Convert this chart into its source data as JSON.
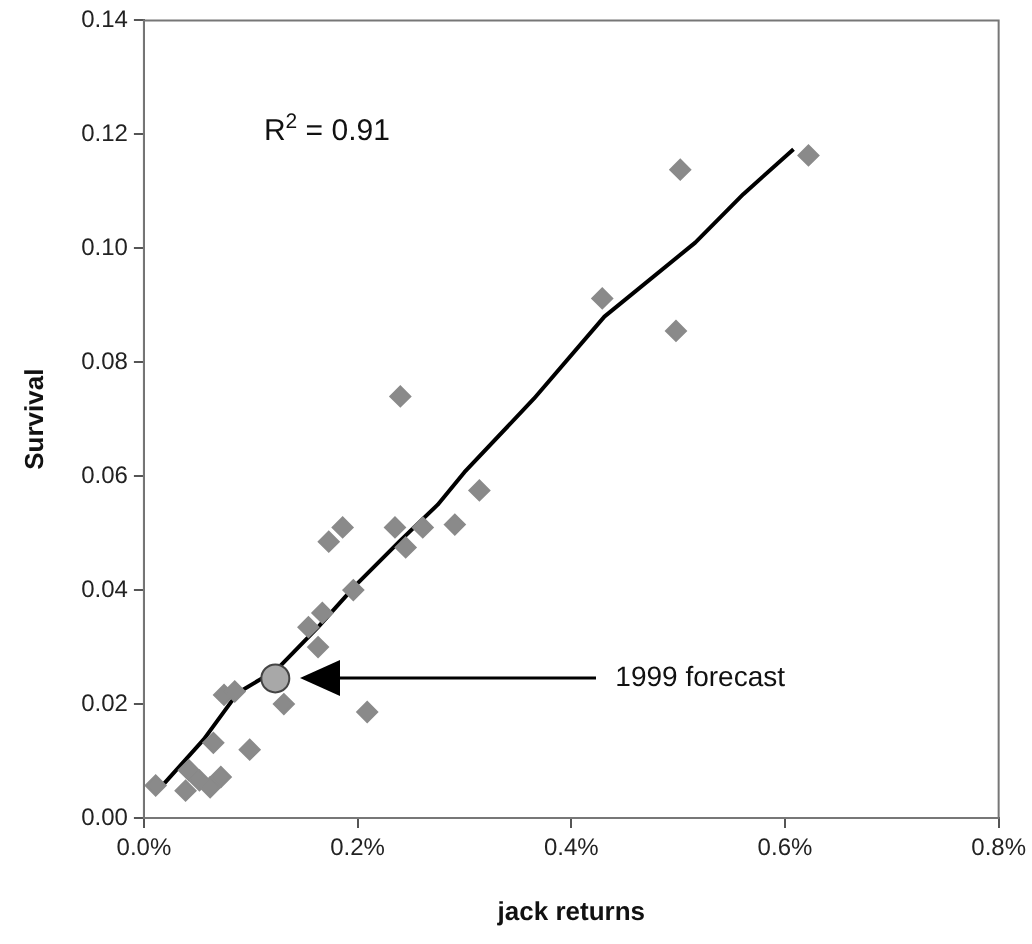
{
  "chart_data": {
    "type": "scatter",
    "xlabel": "jack returns",
    "ylabel": "Survival",
    "xlim": [
      0,
      0.8
    ],
    "ylim": [
      0,
      0.14
    ],
    "xticks": [
      {
        "value": 0,
        "label": "0.0%"
      },
      {
        "value": 0.2,
        "label": "0.2%"
      },
      {
        "value": 0.4,
        "label": "0.4%"
      },
      {
        "value": 0.6,
        "label": "0.6%"
      },
      {
        "value": 0.8,
        "label": "0.8%"
      }
    ],
    "yticks": [
      {
        "value": 0,
        "label": "0.00"
      },
      {
        "value": 0.02,
        "label": "0.02"
      },
      {
        "value": 0.04,
        "label": "0.04"
      },
      {
        "value": 0.06,
        "label": "0.06"
      },
      {
        "value": 0.08,
        "label": "0.08"
      },
      {
        "value": 0.1,
        "label": "0.10"
      },
      {
        "value": 0.12,
        "label": "0.12"
      },
      {
        "value": 0.14,
        "label": "0.14"
      }
    ],
    "grid": false,
    "legend": false,
    "series": [
      {
        "marker": "diamond",
        "color": "#8a8a8a",
        "x": [
          0.011,
          0.039,
          0.042,
          0.052,
          0.062,
          0.072,
          0.065,
          0.075,
          0.085,
          0.099,
          0.131,
          0.209,
          0.154,
          0.167,
          0.163,
          0.173,
          0.186,
          0.196,
          0.235,
          0.245,
          0.261,
          0.291,
          0.314,
          0.24,
          0.429,
          0.498,
          0.502,
          0.622
        ],
        "values": [
          0.0057,
          0.0048,
          0.0084,
          0.0066,
          0.0054,
          0.0072,
          0.0132,
          0.0216,
          0.0222,
          0.012,
          0.02,
          0.0186,
          0.0335,
          0.036,
          0.03,
          0.0485,
          0.051,
          0.04,
          0.051,
          0.0475,
          0.051,
          0.0515,
          0.0575,
          0.074,
          0.0912,
          0.0855,
          0.1138,
          0.1163
        ]
      },
      {
        "type": "scatter",
        "marker": "circle",
        "color": "#a8a8a8",
        "x": [
          0.123
        ],
        "values": [
          0.0245
        ]
      },
      {
        "type": "line",
        "marker": "none",
        "color": "#000000",
        "x": [
          0.013,
          0.056,
          0.088,
          0.124,
          0.163,
          0.199,
          0.239,
          0.275,
          0.3,
          0.365,
          0.431,
          0.516,
          0.561,
          0.608
        ],
        "values": [
          0.0048,
          0.0138,
          0.022,
          0.026,
          0.0335,
          0.041,
          0.0485,
          0.055,
          0.0607,
          0.0736,
          0.088,
          0.101,
          0.1095,
          0.1174
        ]
      }
    ],
    "annotations": [
      "R$^{2}$ = 0.91",
      "1999 forecast"
    ]
  }
}
